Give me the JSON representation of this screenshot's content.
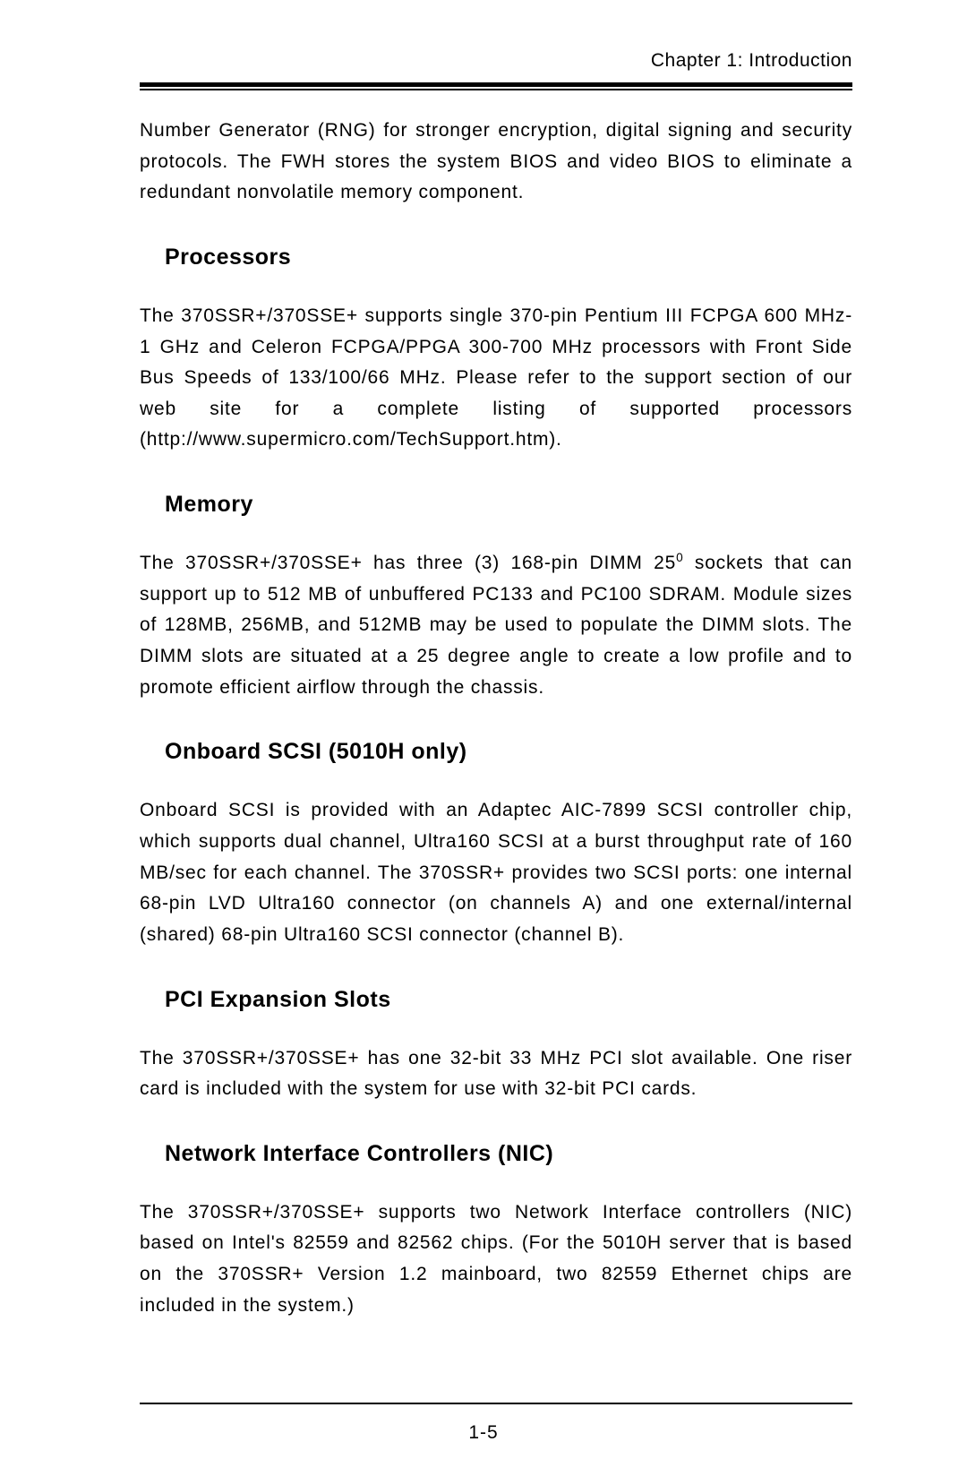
{
  "header": {
    "chapter": "Chapter 1: Introduction"
  },
  "sections": {
    "intro": "Number Generator (RNG) for stronger encryption, digital signing and security protocols.  The FWH stores the system BIOS and video BIOS to eliminate a redundant nonvolatile memory component.",
    "processors": {
      "heading": "Processors",
      "text": "The 370SSR+/370SSE+ supports single 370-pin Pentium III FCPGA 600 MHz-1 GHz  and Celeron FCPGA/PPGA 300-700 MHz processors with Front Side Bus Speeds of  133/100/66 MHz.  Please refer to the support section of our web site for a complete listing of supported processors (http://www.supermicro.com/TechSupport.htm)."
    },
    "memory": {
      "heading": "Memory",
      "text_pre": "The 370SSR+/370SSE+ has three (3) 168-pin DIMM 25",
      "text_sup": "0",
      "text_post": " sockets that can support up to 512 MB of unbuffered PC133 and PC100 SDRAM.  Module sizes of 128MB, 256MB,  and 512MB may be used to populate the DIMM slots.  The DIMM slots are situated at a 25 degree angle to create a low profile and to promote efficient airflow through the chassis."
    },
    "scsi": {
      "heading": "Onboard SCSI (5010H only)",
      "text": "Onboard SCSI is provided with an Adaptec AIC-7899 SCSI controller chip, which supports dual channel, Ultra160 SCSI at a burst throughput rate of 160 MB/sec for each channel.  The 370SSR+ provides two SCSI ports: one internal 68-pin LVD Ultra160 connector (on channels A) and one external/internal (shared)  68-pin Ultra160 SCSI connector (channel B)."
    },
    "pci": {
      "heading": "PCI Expansion Slots",
      "text": "The 370SSR+/370SSE+ has one 32-bit 33 MHz PCI slot available.  One riser card is included with the system for use with 32-bit PCI cards."
    },
    "nic": {
      "heading": "Network Interface Controllers (NIC)",
      "text": "The 370SSR+/370SSE+ supports two Network Interface controllers (NIC) based on Intel's 82559 and 82562 chips. (For the 5010H server that is based on the 370SSR+ Version 1.2 mainboard,  two 82559 Ethernet chips are included in the system.)"
    }
  },
  "page_number": "1-5"
}
